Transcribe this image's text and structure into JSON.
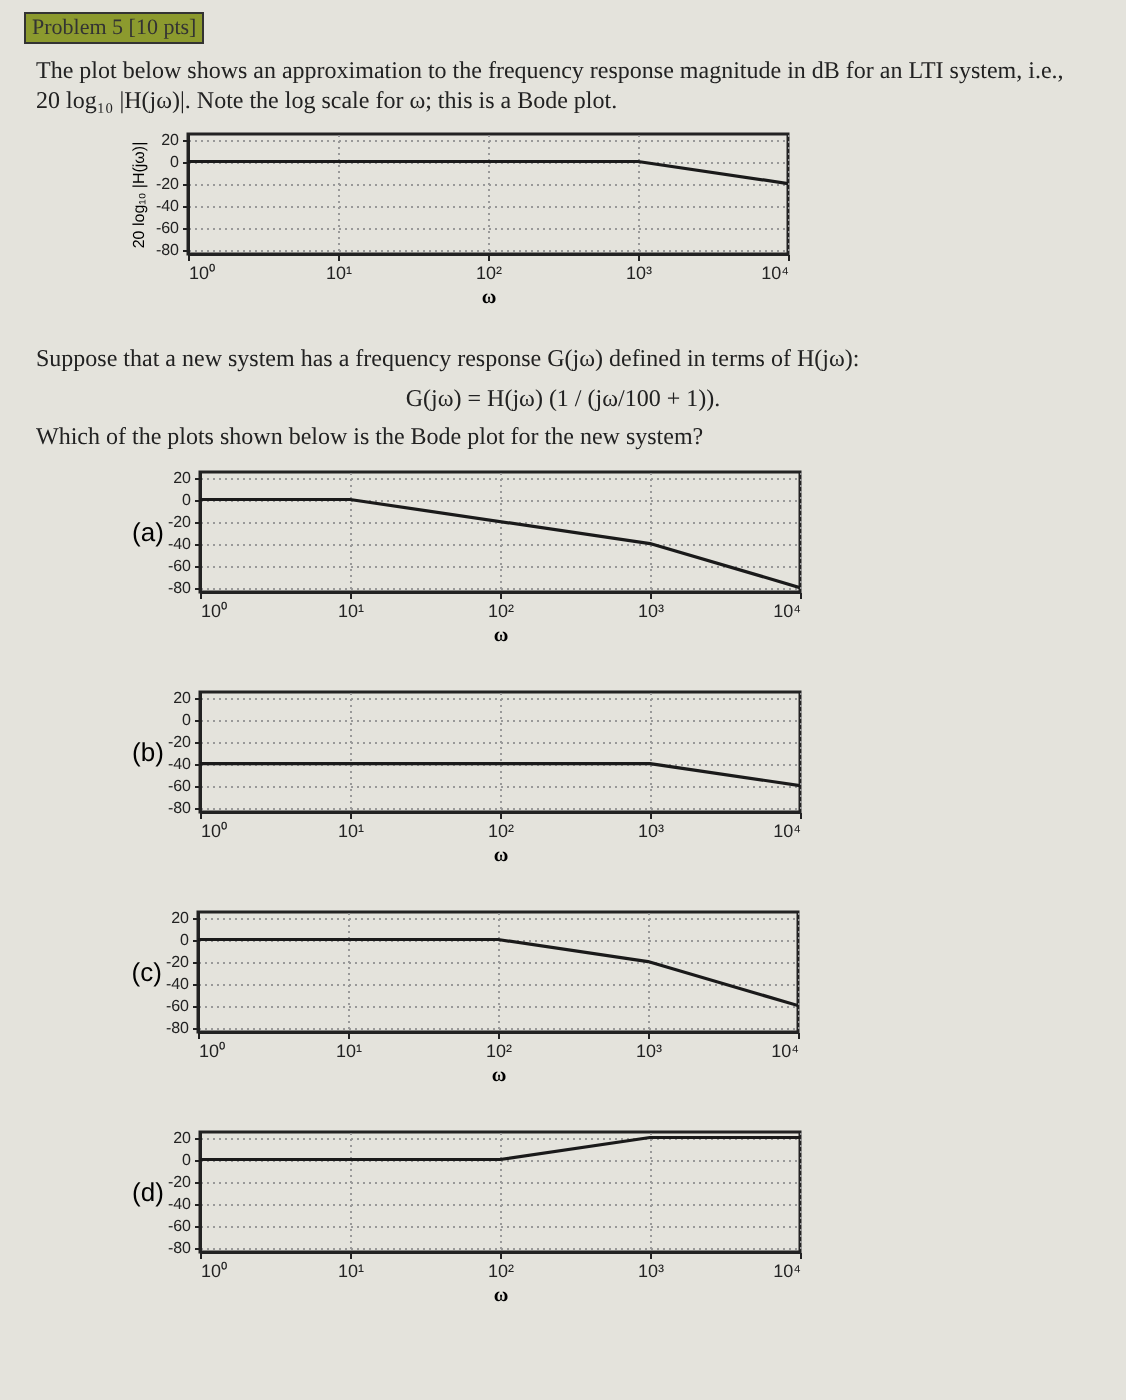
{
  "chart_data": [
    {
      "type": "line",
      "title": "Problem 5 [10 pts]",
      "subtitle": "The plot below shows an approximation to the frequency response magnitude in dB for an LTI system, i.e., 20 log₁₀ |H(jω)|. Note the log scale for ω; this is a Bode plot.",
      "xlabel": "ω",
      "ylabel": "20 log₁₀ |H(jω)|",
      "log": "x",
      "grid": true,
      "xlim": [
        1,
        10000
      ],
      "ylim": [
        -84,
        25
      ],
      "xticks": [
        {
          "value": 1,
          "label": "10⁰"
        },
        {
          "value": 10,
          "label": "10¹"
        },
        {
          "value": 100,
          "label": "10²"
        },
        {
          "value": 1000,
          "label": "10³"
        },
        {
          "value": 10000,
          "label": "10⁴"
        }
      ],
      "yticks": [
        -80,
        -60,
        -40,
        -20,
        0,
        20
      ],
      "x": [
        1,
        1000,
        10000
      ],
      "series": [
        {
          "color": "#1a1a1a",
          "values": [
            0,
            0,
            -20
          ]
        }
      ],
      "annotations": [
        "Suppose that a new system has a frequency response G(jω) defined in terms of H(jω):",
        "G(jω) = H(jω) (1 / (jω/100 + 1)).",
        "Which of the plots shown below is the Bode plot for the new system?"
      ]
    },
    {
      "type": "line",
      "xlabel": "ω",
      "ylabel": "(a)",
      "log": "x",
      "grid": true,
      "xlim": [
        1,
        10000
      ],
      "ylim": [
        -84,
        25
      ],
      "xticks": [
        {
          "value": 1,
          "label": "10⁰"
        },
        {
          "value": 10,
          "label": "10¹"
        },
        {
          "value": 100,
          "label": "10²"
        },
        {
          "value": 1000,
          "label": "10³"
        },
        {
          "value": 10000,
          "label": "10⁴"
        }
      ],
      "yticks": [
        -80,
        -60,
        -40,
        -20,
        0,
        20
      ],
      "x": [
        1,
        10,
        1000,
        10000
      ],
      "series": [
        {
          "color": "#1a1a1a",
          "values": [
            0,
            0,
            -40,
            -80
          ]
        }
      ]
    },
    {
      "type": "line",
      "xlabel": "ω",
      "ylabel": "(b)",
      "log": "x",
      "grid": true,
      "xlim": [
        1,
        10000
      ],
      "ylim": [
        -84,
        25
      ],
      "xticks": [
        {
          "value": 1,
          "label": "10⁰"
        },
        {
          "value": 10,
          "label": "10¹"
        },
        {
          "value": 100,
          "label": "10²"
        },
        {
          "value": 1000,
          "label": "10³"
        },
        {
          "value": 10000,
          "label": "10⁴"
        }
      ],
      "yticks": [
        -80,
        -60,
        -40,
        -20,
        0,
        20
      ],
      "x": [
        1,
        1000,
        10000
      ],
      "series": [
        {
          "color": "#1a1a1a",
          "values": [
            -40,
            -40,
            -60
          ]
        }
      ]
    },
    {
      "type": "line",
      "xlabel": "ω",
      "ylabel": "(c)",
      "log": "x",
      "grid": true,
      "xlim": [
        1,
        10000
      ],
      "ylim": [
        -84,
        25
      ],
      "xticks": [
        {
          "value": 1,
          "label": "10⁰"
        },
        {
          "value": 10,
          "label": "10¹"
        },
        {
          "value": 100,
          "label": "10²"
        },
        {
          "value": 1000,
          "label": "10³"
        },
        {
          "value": 10000,
          "label": "10⁴"
        }
      ],
      "yticks": [
        -80,
        -60,
        -40,
        -20,
        0,
        20
      ],
      "x": [
        1,
        100,
        1000,
        10000
      ],
      "series": [
        {
          "color": "#1a1a1a",
          "values": [
            0,
            0,
            -20,
            -60
          ]
        }
      ]
    },
    {
      "type": "line",
      "xlabel": "ω",
      "ylabel": "(d)",
      "log": "x",
      "grid": true,
      "xlim": [
        1,
        10000
      ],
      "ylim": [
        -84,
        25
      ],
      "xticks": [
        {
          "value": 1,
          "label": "10⁰"
        },
        {
          "value": 10,
          "label": "10¹"
        },
        {
          "value": 100,
          "label": "10²"
        },
        {
          "value": 1000,
          "label": "10³"
        },
        {
          "value": 10000,
          "label": "10⁴"
        }
      ],
      "yticks": [
        -80,
        -60,
        -40,
        -20,
        0,
        20
      ],
      "x": [
        1,
        100,
        1000,
        10000
      ],
      "series": [
        {
          "color": "#1a1a1a",
          "values": [
            0,
            0,
            20,
            20
          ]
        }
      ]
    }
  ]
}
